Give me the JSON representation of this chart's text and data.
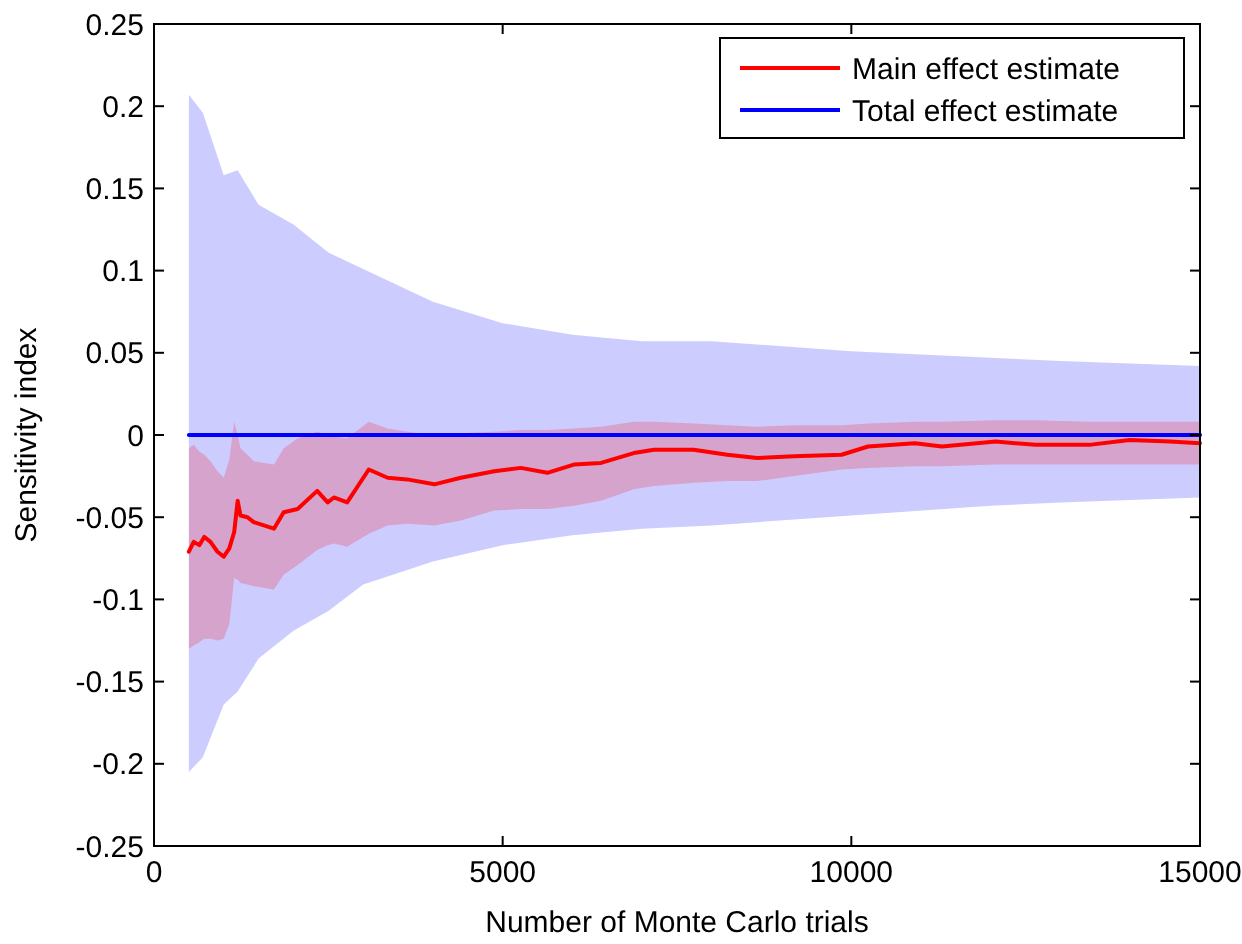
{
  "chart_data": {
    "type": "line",
    "xlabel": "Number of Monte Carlo trials",
    "ylabel": "Sensitivity index",
    "xlim": [
      0,
      15000
    ],
    "xticks": [
      0,
      5000,
      10000,
      15000
    ],
    "ylim": [
      -0.25,
      0.25
    ],
    "yticks": [
      -0.25,
      -0.2,
      -0.15,
      -0.1,
      -0.05,
      0,
      0.05,
      0.1,
      0.15,
      0.2,
      0.25
    ],
    "grid": false,
    "legend": "top right",
    "line_style": "solid",
    "marker": "none",
    "series": [
      {
        "name": "Total effect estimate",
        "color": "#0000ff",
        "x": [
          500,
          700,
          1000,
          1200,
          1500,
          2000,
          2500,
          3000,
          4000,
          5000,
          6000,
          7000,
          8000,
          10000,
          12000,
          13000,
          15000
        ],
        "values": [
          0,
          0,
          0,
          0,
          0,
          0,
          0,
          0,
          0,
          0,
          0,
          0,
          0,
          0,
          0,
          0,
          0
        ],
        "lower": [
          -0.205,
          -0.196,
          -0.164,
          -0.156,
          -0.136,
          -0.119,
          -0.107,
          -0.091,
          -0.077,
          -0.067,
          -0.061,
          -0.057,
          -0.055,
          -0.049,
          -0.043,
          -0.041,
          -0.038
        ],
        "upper": [
          0.207,
          0.196,
          0.158,
          0.161,
          0.14,
          0.128,
          0.111,
          0.101,
          0.081,
          0.068,
          0.061,
          0.057,
          0.057,
          0.051,
          0.047,
          0.045,
          0.042
        ]
      },
      {
        "name": "Main effect estimate",
        "color": "#ff0000",
        "x": [
          500,
          570,
          650,
          720,
          810,
          910,
          1000,
          1080,
          1150,
          1200,
          1240,
          1340,
          1430,
          1720,
          1860,
          2060,
          2340,
          2490,
          2580,
          2770,
          3080,
          3350,
          3630,
          4020,
          4400,
          4880,
          5260,
          5640,
          6020,
          6410,
          6880,
          7170,
          7740,
          8220,
          8650,
          9180,
          9860,
          10240,
          10910,
          11300,
          12070,
          12640,
          13410,
          13990,
          14570,
          15000
        ],
        "values": [
          -0.071,
          -0.065,
          -0.067,
          -0.062,
          -0.065,
          -0.071,
          -0.074,
          -0.069,
          -0.059,
          -0.04,
          -0.049,
          -0.05,
          -0.053,
          -0.057,
          -0.047,
          -0.045,
          -0.034,
          -0.041,
          -0.038,
          -0.041,
          -0.021,
          -0.026,
          -0.027,
          -0.03,
          -0.026,
          -0.022,
          -0.02,
          -0.023,
          -0.018,
          -0.017,
          -0.011,
          -0.009,
          -0.009,
          -0.012,
          -0.014,
          -0.013,
          -0.012,
          -0.007,
          -0.005,
          -0.007,
          -0.004,
          -0.006,
          -0.006,
          -0.003,
          -0.004,
          -0.005
        ],
        "lower": [
          -0.13,
          -0.128,
          -0.126,
          -0.124,
          -0.124,
          -0.125,
          -0.124,
          -0.115,
          -0.087,
          -0.088,
          -0.09,
          -0.091,
          -0.092,
          -0.094,
          -0.085,
          -0.079,
          -0.07,
          -0.067,
          -0.066,
          -0.068,
          -0.06,
          -0.055,
          -0.054,
          -0.055,
          -0.052,
          -0.046,
          -0.045,
          -0.045,
          -0.043,
          -0.04,
          -0.033,
          -0.031,
          -0.029,
          -0.028,
          -0.028,
          -0.025,
          -0.021,
          -0.02,
          -0.019,
          -0.019,
          -0.018,
          -0.018,
          -0.018,
          -0.018,
          -0.018,
          -0.018
        ],
        "upper": [
          -0.008,
          -0.006,
          -0.01,
          -0.012,
          -0.016,
          -0.022,
          -0.026,
          -0.015,
          0.008,
          0,
          -0.008,
          -0.012,
          -0.016,
          -0.018,
          -0.008,
          -0.002,
          0.002,
          0,
          -0.001,
          -0.002,
          0.008,
          0.004,
          0.002,
          0,
          0.001,
          0.002,
          0.003,
          0.003,
          0.004,
          0.005,
          0.008,
          0.008,
          0.007,
          0.006,
          0.005,
          0.006,
          0.006,
          0.007,
          0.008,
          0.008,
          0.009,
          0.009,
          0.008,
          0.008,
          0.008,
          0.008
        ]
      }
    ]
  }
}
